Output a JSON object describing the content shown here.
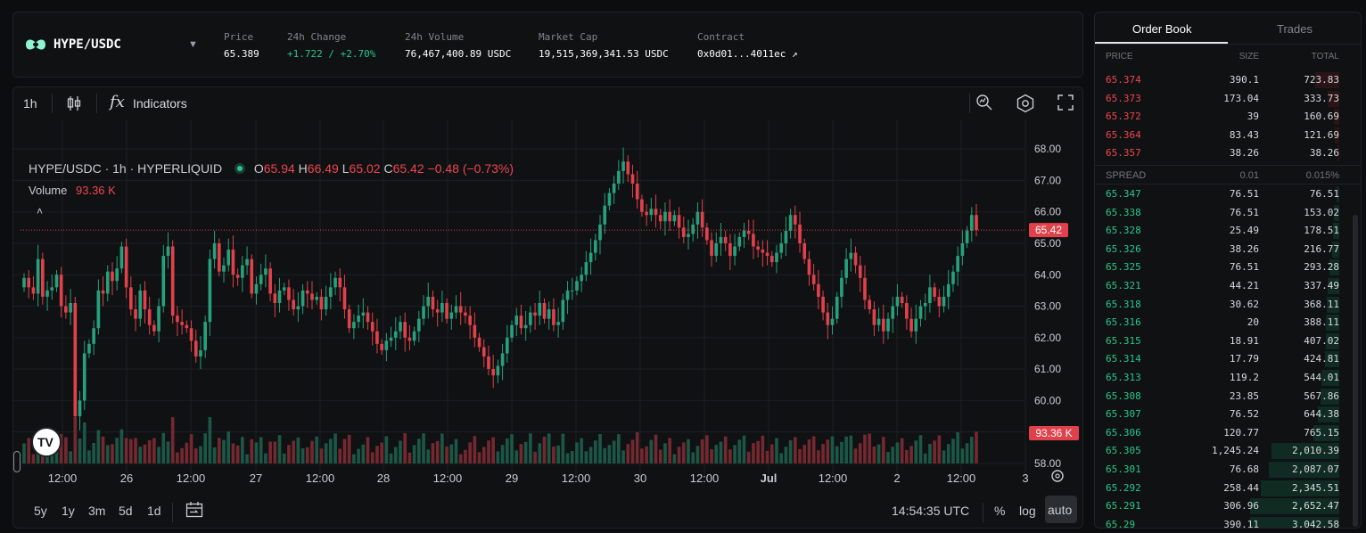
{
  "header": {
    "pair": "HYPE/USDC",
    "stats": [
      {
        "label": "Price",
        "value": "65.389",
        "color": "white"
      },
      {
        "label": "24h Change",
        "value": "+1.722 / +2.70%",
        "color": "green"
      },
      {
        "label": "24h Volume",
        "value": "76,467,400.89 USDC",
        "color": "white"
      },
      {
        "label": "Market Cap",
        "value": "19,515,369,341.53 USDC",
        "color": "white"
      },
      {
        "label": "Contract",
        "value": "0x0d01...4011ec ↗",
        "color": "white"
      }
    ]
  },
  "toolbar": {
    "interval": "1h",
    "indicators_label": "Indicators"
  },
  "legend": {
    "symbol": "HYPE/USDC · 1h · HYPERLIQUID",
    "o_label": "O",
    "o": "65.94",
    "h_label": "H",
    "h": "66.49",
    "l_label": "L",
    "l": "65.02",
    "c_label": "C",
    "c": "65.42",
    "change": "−0.48 (−0.73%)",
    "volume_label": "Volume",
    "volume_value": "93.36 K"
  },
  "bottom": {
    "ranges": [
      "5y",
      "1y",
      "3m",
      "5d",
      "1d"
    ],
    "time": "14:54:35 UTC",
    "percent": "%",
    "log": "log",
    "auto": "auto"
  },
  "chart_data": {
    "type": "candlestick",
    "ylim": [
      57.6,
      68.6
    ],
    "y_ticks": [
      "68.00",
      "67.00",
      "66.00",
      "65.00",
      "64.00",
      "63.00",
      "62.00",
      "61.00",
      "60.00",
      "59.00",
      "58.00"
    ],
    "x_ticks": [
      "12:00",
      "26",
      "12:00",
      "27",
      "12:00",
      "28",
      "12:00",
      "29",
      "12:00",
      "30",
      "12:00",
      "Jul",
      "12:00",
      "2",
      "12:00",
      "3"
    ],
    "last_price": "65.42",
    "last_volume": "93.36 K",
    "close_path": [
      63.9,
      63.6,
      63.4,
      64.5,
      63.3,
      63.5,
      63.6,
      64.0,
      63.0,
      62.8,
      63.1,
      59.5,
      60.0,
      61.5,
      61.8,
      62.3,
      63.5,
      63.4,
      64.1,
      63.8,
      64.2,
      64.9,
      63.6,
      62.9,
      62.6,
      63.5,
      62.9,
      62.4,
      62.2,
      63.0,
      64.6,
      64.9,
      62.7,
      62.5,
      62.4,
      62.3,
      61.9,
      61.4,
      61.6,
      62.5,
      64.5,
      65.0,
      64.1,
      64.3,
      64.8,
      64.0,
      63.9,
      64.3,
      64.5,
      63.4,
      63.7,
      64.0,
      64.2,
      63.4,
      63.1,
      63.5,
      63.6,
      63.2,
      62.9,
      63.0,
      63.5,
      63.4,
      63.2,
      63.3,
      62.9,
      63.3,
      63.6,
      63.9,
      63.6,
      62.9,
      62.3,
      62.5,
      62.7,
      62.8,
      62.5,
      62.2,
      61.8,
      61.6,
      61.9,
      62.0,
      62.2,
      62.5,
      62.0,
      61.9,
      62.2,
      62.6,
      63.0,
      63.3,
      62.9,
      62.8,
      63.1,
      62.6,
      62.8,
      63.0,
      62.8,
      62.7,
      62.4,
      62.0,
      61.7,
      61.4,
      61.0,
      60.8,
      61.1,
      61.5,
      62.0,
      62.4,
      62.7,
      62.3,
      62.4,
      62.8,
      62.7,
      63.1,
      62.6,
      62.9,
      62.4,
      62.5,
      63.2,
      63.5,
      63.5,
      63.8,
      64.0,
      64.4,
      64.7,
      65.1,
      65.6,
      66.2,
      66.6,
      66.9,
      67.3,
      67.6,
      67.2,
      66.9,
      66.4,
      66.0,
      65.9,
      66.1,
      65.9,
      65.7,
      66.0,
      65.7,
      65.9,
      65.5,
      65.2,
      65.3,
      65.6,
      66.0,
      65.5,
      65.1,
      64.6,
      65.0,
      65.2,
      65.0,
      64.6,
      64.9,
      65.2,
      65.4,
      65.3,
      64.9,
      64.8,
      64.7,
      64.6,
      64.4,
      64.7,
      65.0,
      65.4,
      65.9,
      65.6,
      65.0,
      64.5,
      64.0,
      63.7,
      63.3,
      62.8,
      62.4,
      62.6,
      63.3,
      63.9,
      64.5,
      64.7,
      64.3,
      63.9,
      63.2,
      62.9,
      62.4,
      62.6,
      62.2,
      62.6,
      63.0,
      63.3,
      63.1,
      62.6,
      62.2,
      62.6,
      63.0,
      63.1,
      63.6,
      63.3,
      63.0,
      63.3,
      63.7,
      64.1,
      64.6,
      65.0,
      65.4,
      65.9,
      65.42
    ]
  },
  "order_book": {
    "tabs": [
      "Order Book",
      "Trades"
    ],
    "headers": {
      "price": "PRICE",
      "size": "SIZE",
      "total": "TOTAL"
    },
    "asks": [
      {
        "price": "65.374",
        "size": "390.1",
        "total": "723.83",
        "depth": 0.27
      },
      {
        "price": "65.373",
        "size": "173.04",
        "total": "333.73",
        "depth": 0.13
      },
      {
        "price": "65.372",
        "size": "39",
        "total": "160.69",
        "depth": 0.06
      },
      {
        "price": "65.364",
        "size": "83.43",
        "total": "121.69",
        "depth": 0.05
      },
      {
        "price": "65.357",
        "size": "38.26",
        "total": "38.26",
        "depth": 0.02
      }
    ],
    "spread": {
      "label": "SPREAD",
      "value": "0.01",
      "percent": "0.015%"
    },
    "bids": [
      {
        "price": "65.347",
        "size": "76.51",
        "total": "76.51",
        "depth": 0.03
      },
      {
        "price": "65.338",
        "size": "76.51",
        "total": "153.02",
        "depth": 0.06
      },
      {
        "price": "65.328",
        "size": "25.49",
        "total": "178.51",
        "depth": 0.07
      },
      {
        "price": "65.326",
        "size": "38.26",
        "total": "216.77",
        "depth": 0.08
      },
      {
        "price": "65.325",
        "size": "76.51",
        "total": "293.28",
        "depth": 0.11
      },
      {
        "price": "65.321",
        "size": "44.21",
        "total": "337.49",
        "depth": 0.13
      },
      {
        "price": "65.318",
        "size": "30.62",
        "total": "368.11",
        "depth": 0.14
      },
      {
        "price": "65.316",
        "size": "20",
        "total": "388.11",
        "depth": 0.15
      },
      {
        "price": "65.315",
        "size": "18.91",
        "total": "407.02",
        "depth": 0.15
      },
      {
        "price": "65.314",
        "size": "17.79",
        "total": "424.81",
        "depth": 0.16
      },
      {
        "price": "65.313",
        "size": "119.2",
        "total": "544.01",
        "depth": 0.2
      },
      {
        "price": "65.308",
        "size": "23.85",
        "total": "567.86",
        "depth": 0.21
      },
      {
        "price": "65.307",
        "size": "76.52",
        "total": "644.38",
        "depth": 0.24
      },
      {
        "price": "65.306",
        "size": "120.77",
        "total": "765.15",
        "depth": 0.29
      },
      {
        "price": "65.305",
        "size": "1,245.24",
        "total": "2,010.39",
        "depth": 0.76
      },
      {
        "price": "65.301",
        "size": "76.68",
        "total": "2,087.07",
        "depth": 0.79
      },
      {
        "price": "65.292",
        "size": "258.44",
        "total": "2,345.51",
        "depth": 0.88
      },
      {
        "price": "65.291",
        "size": "306.96",
        "total": "2,652.47",
        "depth": 1.0
      },
      {
        "price": "65.29",
        "size": "390.11",
        "total": "3,042.58",
        "depth": 1.0
      }
    ]
  },
  "colors": {
    "up": "#26a17b",
    "down": "#e0414b",
    "accent_green": "#26c88a",
    "price_tag": "#e0414b"
  }
}
